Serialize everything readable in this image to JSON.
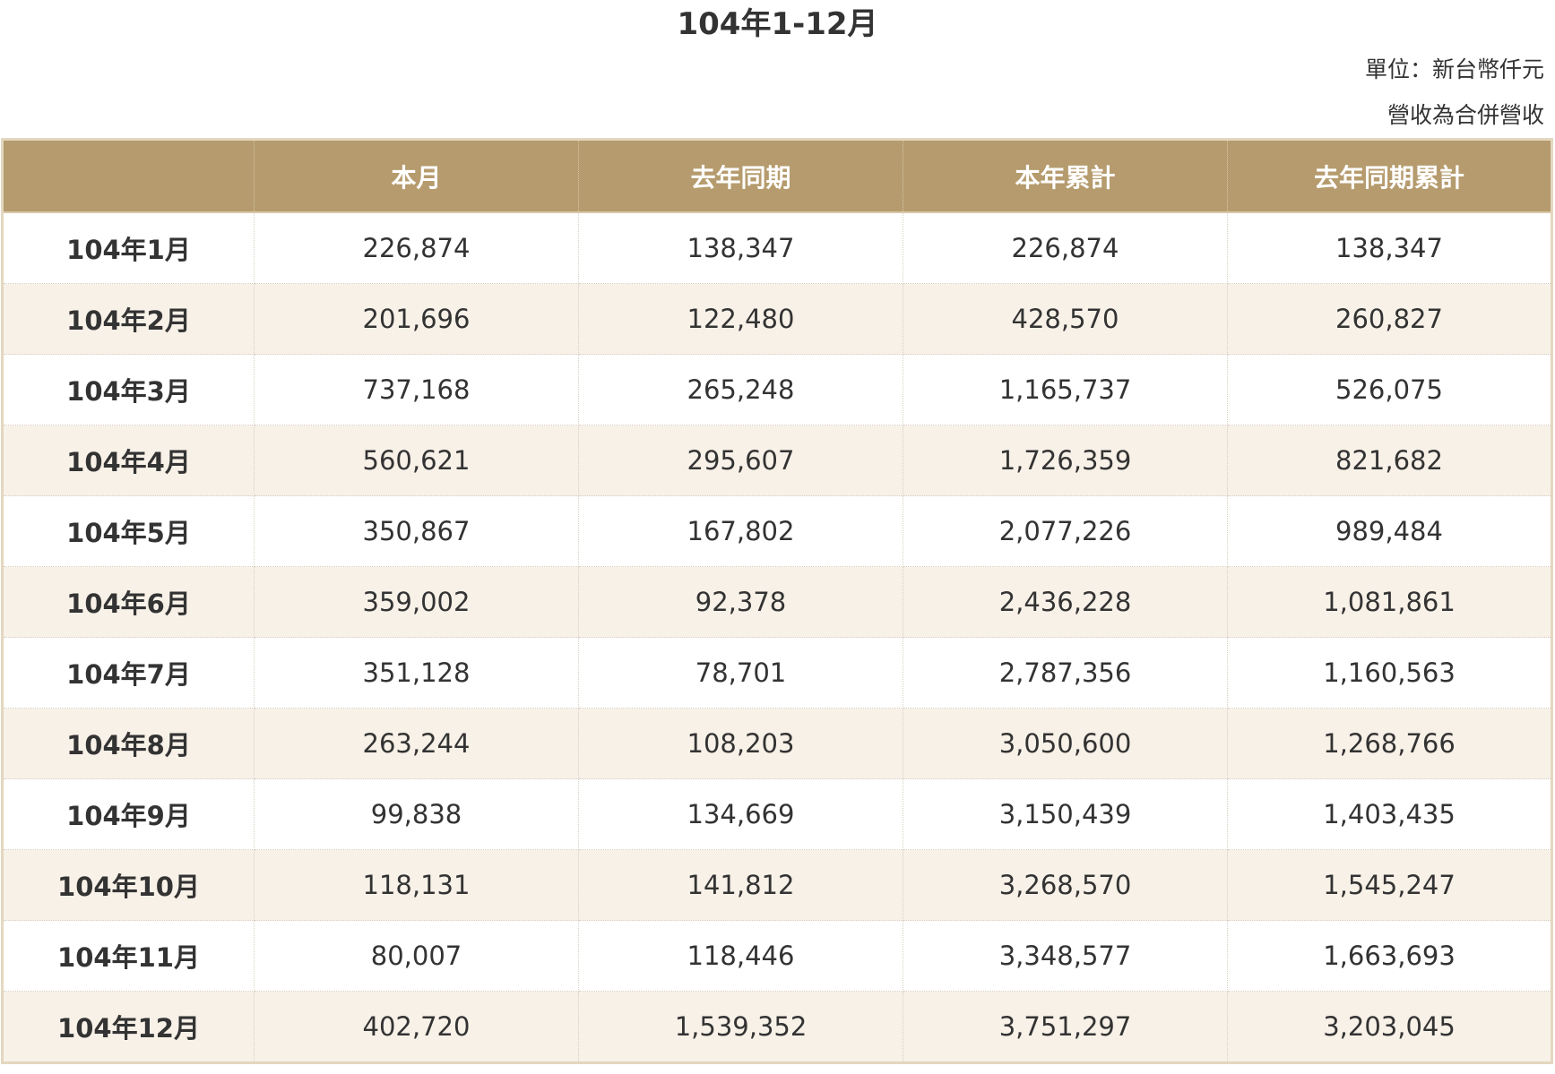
{
  "title": "104年1-12月",
  "unit_note": "單位：新台幣仟元",
  "consolidated_note": "營收為合併營收",
  "table": {
    "headers": [
      "",
      "本月",
      "去年同期",
      "本年累計",
      "去年同期累計"
    ],
    "rows": [
      [
        "104年1月",
        "226,874",
        "138,347",
        "226,874",
        "138,347"
      ],
      [
        "104年2月",
        "201,696",
        "122,480",
        "428,570",
        "260,827"
      ],
      [
        "104年3月",
        "737,168",
        "265,248",
        "1,165,737",
        "526,075"
      ],
      [
        "104年4月",
        "560,621",
        "295,607",
        "1,726,359",
        "821,682"
      ],
      [
        "104年5月",
        "350,867",
        "167,802",
        "2,077,226",
        "989,484"
      ],
      [
        "104年6月",
        "359,002",
        "92,378",
        "2,436,228",
        "1,081,861"
      ],
      [
        "104年7月",
        "351,128",
        "78,701",
        "2,787,356",
        "1,160,563"
      ],
      [
        "104年8月",
        "263,244",
        "108,203",
        "3,050,600",
        "1,268,766"
      ],
      [
        "104年9月",
        "99,838",
        "134,669",
        "3,150,439",
        "1,403,435"
      ],
      [
        "104年10月",
        "118,131",
        "141,812",
        "3,268,570",
        "1,545,247"
      ],
      [
        "104年11月",
        "80,007",
        "118,446",
        "3,348,577",
        "1,663,693"
      ],
      [
        "104年12月",
        "402,720",
        "1,539,352",
        "3,751,297",
        "3,203,045"
      ]
    ]
  },
  "colors": {
    "header_bg": "#b59b6d",
    "header_text": "#ffffff",
    "row_alt_bg": "#f8f1e8",
    "table_border": "#e3d7bf"
  }
}
